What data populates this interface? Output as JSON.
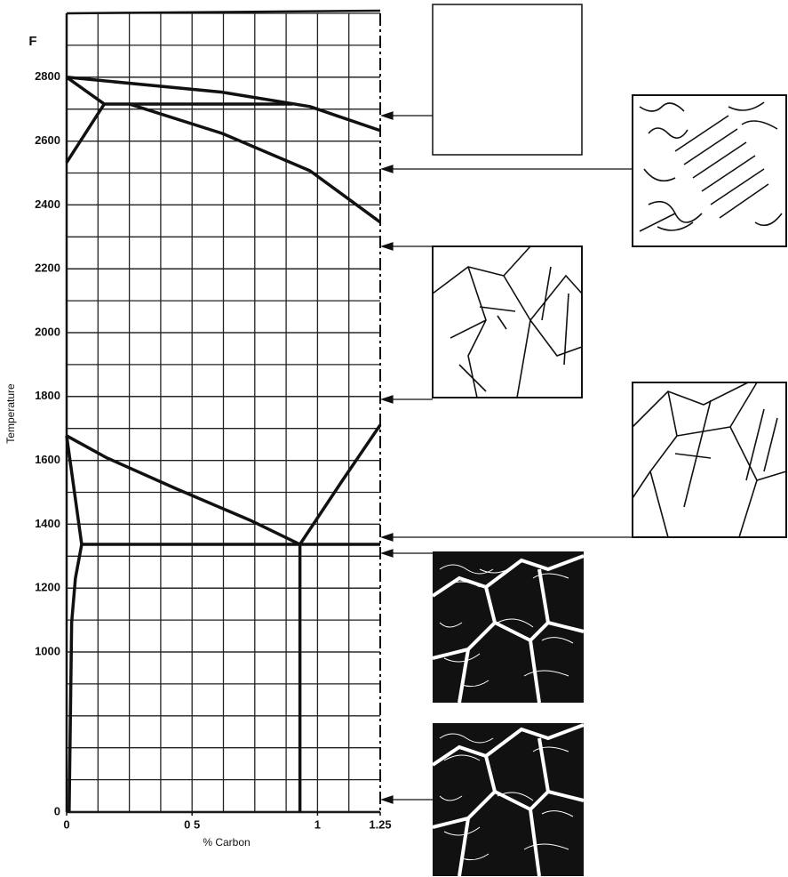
{
  "chart_data": {
    "type": "line",
    "y_unit": "F",
    "y_label": "Temperature",
    "x_label": "% Carbon",
    "xlim": [
      0,
      1.25
    ],
    "xticks": [
      0,
      {
        "value": 0.5,
        "label": "0 5"
      },
      1,
      1.25
    ],
    "ylim": [
      0,
      3000
    ],
    "yticks": [
      0,
      1000,
      1200,
      1400,
      1600,
      1800,
      2000,
      2200,
      2400,
      2600,
      2800
    ],
    "grid": true,
    "series": [
      {
        "color": "#111",
        "x": [
          0,
          0.62,
          0.97,
          1.25
        ],
        "values": [
          2800,
          2753,
          2708,
          2633
        ]
      },
      {
        "color": "#111",
        "x": [
          0,
          0.15,
          0
        ],
        "values": [
          2533,
          2716,
          2800
        ]
      },
      {
        "color": "#111",
        "x": [
          0.15,
          0.9
        ],
        "values": [
          2716,
          2716
        ]
      },
      {
        "color": "#111",
        "x": [
          0.25,
          0.62,
          0.97,
          1.25
        ],
        "values": [
          2716,
          2624,
          2507,
          2346
        ]
      },
      {
        "color": "#111",
        "x": [
          0,
          0.16,
          0.44,
          0.73,
          0.93
        ],
        "values": [
          1677,
          1608,
          1510,
          1413,
          1337
        ]
      },
      {
        "color": "#111",
        "x": [
          0.93,
          1.1,
          1.25
        ],
        "values": [
          1337,
          1538,
          1711
        ]
      },
      {
        "color": "#111",
        "x": [
          0.06,
          1.25
        ],
        "values": [
          1337,
          1337
        ]
      },
      {
        "color": "#111",
        "x": [
          0,
          0.06,
          0.035,
          0.02,
          0.01
        ],
        "values": [
          1677,
          1337,
          1231,
          1092,
          0
        ]
      },
      {
        "color": "#111",
        "x": [
          0.93,
          0.93
        ],
        "values": [
          1337,
          0
        ]
      }
    ]
  }
}
